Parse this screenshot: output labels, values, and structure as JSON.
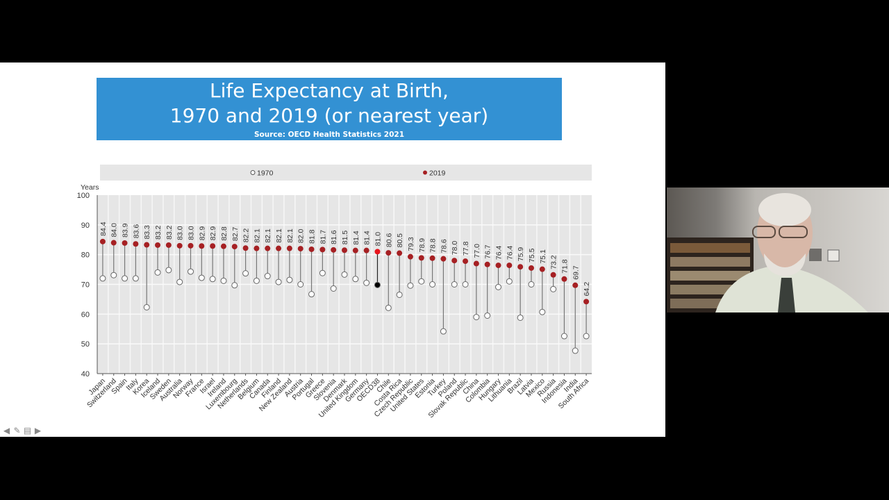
{
  "slide": {
    "title_line1": "Life Expectancy at Birth,",
    "title_line2": "1970 and 2019 (or nearest year)",
    "source": "Source: OECD Health Statistics 2021",
    "nav_icons": [
      "previous-arrow-icon",
      "pen-icon",
      "slide-menu-icon",
      "next-arrow-icon"
    ]
  },
  "webcam": {
    "description": "Presenter video feed"
  },
  "colors": {
    "title_bg": "#3391d3",
    "dot_2019": "#a62023",
    "dot_oecd_2019": "#e8141c",
    "dot_1970": "#ffffff",
    "oecd_1970": "#000000",
    "plot_bg": "#e6e6e6"
  },
  "chart_data": {
    "type": "dot-plot",
    "title": "Life Expectancy at Birth, 1970 and 2019 (or nearest year)",
    "ylabel": "Years",
    "ylim": [
      40,
      100
    ],
    "yticks": [
      40,
      50,
      60,
      70,
      80,
      90,
      100
    ],
    "grid": true,
    "legend": {
      "position": "top",
      "entries": [
        "1970",
        "2019"
      ]
    },
    "categories": [
      "Japan",
      "Switzerland",
      "Spain",
      "Italy",
      "Korea",
      "Iceland",
      "Sweden",
      "Australia",
      "Norway",
      "France",
      "Israel",
      "Ireland",
      "Luxembourg",
      "Netherlands",
      "Belgium",
      "Canada",
      "Finland",
      "New Zealand",
      "Austria",
      "Portugal",
      "Greece",
      "Slovenia",
      "Denmark",
      "United Kingdom",
      "Germany",
      "OECD38",
      "Chile",
      "Costa Rica",
      "Czech Republic",
      "United States",
      "Estonia",
      "Turkey",
      "Poland",
      "Slovak Republic",
      "China",
      "Colombia",
      "Hungary",
      "Lithuania",
      "Brazil",
      "Latvia",
      "Mexico",
      "Russia",
      "Indonesia",
      "India",
      "South Africa"
    ],
    "series": [
      {
        "name": "1970",
        "values": [
          72.0,
          73.1,
          72.0,
          72.0,
          62.3,
          74.0,
          74.8,
          70.8,
          74.3,
          72.2,
          71.8,
          71.2,
          69.7,
          73.7,
          71.2,
          72.8,
          70.8,
          71.5,
          70.0,
          66.7,
          73.8,
          68.6,
          73.3,
          71.8,
          70.5,
          69.8,
          62.1,
          66.5,
          69.6,
          71.0,
          70.0,
          54.2,
          70.0,
          70.0,
          59.0,
          59.5,
          69.1,
          71.0,
          58.8,
          70.0,
          60.7,
          68.4,
          52.6,
          47.7,
          52.6
        ]
      },
      {
        "name": "2019",
        "values": [
          84.4,
          84.0,
          83.9,
          83.6,
          83.3,
          83.2,
          83.2,
          83.0,
          83.0,
          82.9,
          82.9,
          82.8,
          82.7,
          82.2,
          82.1,
          82.1,
          82.1,
          82.1,
          82.0,
          81.8,
          81.7,
          81.6,
          81.5,
          81.4,
          81.4,
          81.0,
          80.6,
          80.5,
          79.3,
          78.9,
          78.8,
          78.6,
          78.0,
          77.8,
          77.0,
          76.7,
          76.4,
          76.4,
          75.9,
          75.5,
          75.1,
          73.2,
          71.8,
          69.7,
          64.2
        ]
      }
    ],
    "data_labels_2019": [
      "84.4",
      "84.0",
      "83.9",
      "83.6",
      "83.3",
      "83.2",
      "83.2",
      "83.0",
      "83.0",
      "82.9",
      "82.9",
      "82.8",
      "82.7",
      "82.2",
      "82.1",
      "82.1",
      "82.1",
      "82.1",
      "82.0",
      "81.8",
      "81.7",
      "81.6",
      "81.5",
      "81.4",
      "81.4",
      "81.0",
      "80.6",
      "80.5",
      "79.3",
      "78.9",
      "78.8",
      "78.6",
      "78.0",
      "77.8",
      "77.0",
      "76.7",
      "76.4",
      "76.4",
      "75.9",
      "75.5",
      "75.1",
      "73.2",
      "71.8",
      "69.7",
      "64.2"
    ],
    "highlight": "OECD38"
  }
}
